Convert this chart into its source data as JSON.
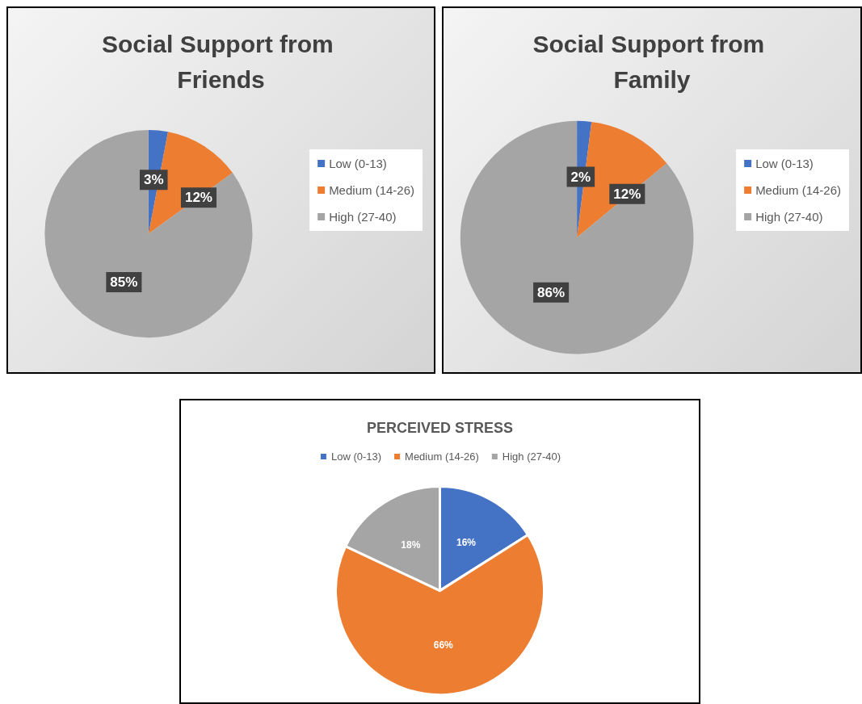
{
  "chart_data": [
    {
      "type": "pie",
      "title": "Social Support from Friends",
      "categories": [
        "Low (0-13)",
        "Medium (14-26)",
        "High (27-40)"
      ],
      "values": [
        3,
        12,
        85
      ],
      "value_labels": [
        "3%",
        "12%",
        "85%"
      ],
      "colors": [
        "#4472c4",
        "#ed7d31",
        "#a5a5a5"
      ],
      "legend": "right"
    },
    {
      "type": "pie",
      "title": "Social Support from Family",
      "categories": [
        "Low (0-13)",
        "Medium (14-26)",
        "High (27-40)"
      ],
      "values": [
        2,
        12,
        86
      ],
      "value_labels": [
        "2%",
        "12%",
        "86%"
      ],
      "colors": [
        "#4472c4",
        "#ed7d31",
        "#a5a5a5"
      ],
      "legend": "right"
    },
    {
      "type": "pie",
      "title": "PERCEIVED STRESS",
      "categories": [
        "Low (0-13)",
        "Medium (14-26)",
        "High (27-40)"
      ],
      "values": [
        16,
        66,
        18
      ],
      "value_labels": [
        "16%",
        "66%",
        "18%"
      ],
      "colors": [
        "#4472c4",
        "#ed7d31",
        "#a5a5a5"
      ],
      "legend": "top"
    }
  ]
}
